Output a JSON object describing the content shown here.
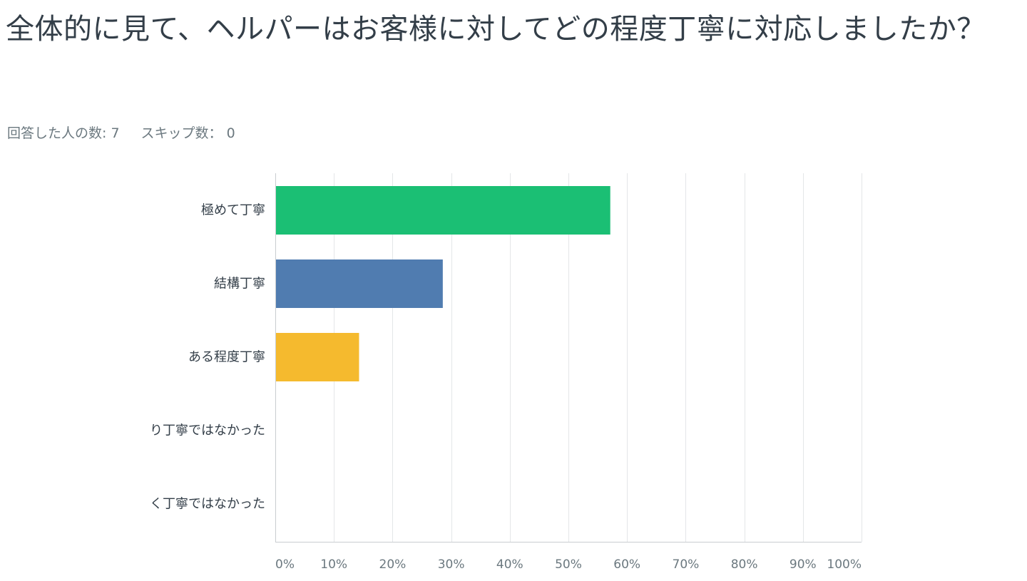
{
  "question": {
    "title": "全体的に見て、ヘルパーはお客様に対してどの程度丁寧に対応しましたか？"
  },
  "stats": {
    "answered_label": "回答した人の数: 7",
    "skipped_label": "スキップ数： 0"
  },
  "chart_data": {
    "type": "bar",
    "orientation": "horizontal",
    "categories": [
      "極めて丁寧",
      "結構丁寧",
      "ある程度丁寧",
      "り丁寧ではなかった",
      "く丁寧ではなかった"
    ],
    "values": [
      57.14,
      28.57,
      14.29,
      0,
      0
    ],
    "colors": [
      "#1bbf74",
      "#507cb0",
      "#f5ba2e",
      "#ef6b6b",
      "#9b7dd4"
    ],
    "xlim": [
      0,
      100
    ],
    "x_ticks": [
      "0%",
      "10%",
      "20%",
      "30%",
      "40%",
      "50%",
      "60%",
      "70%",
      "80%",
      "90%",
      "100%"
    ],
    "grid": true,
    "title": "",
    "xlabel": "",
    "ylabel": ""
  }
}
